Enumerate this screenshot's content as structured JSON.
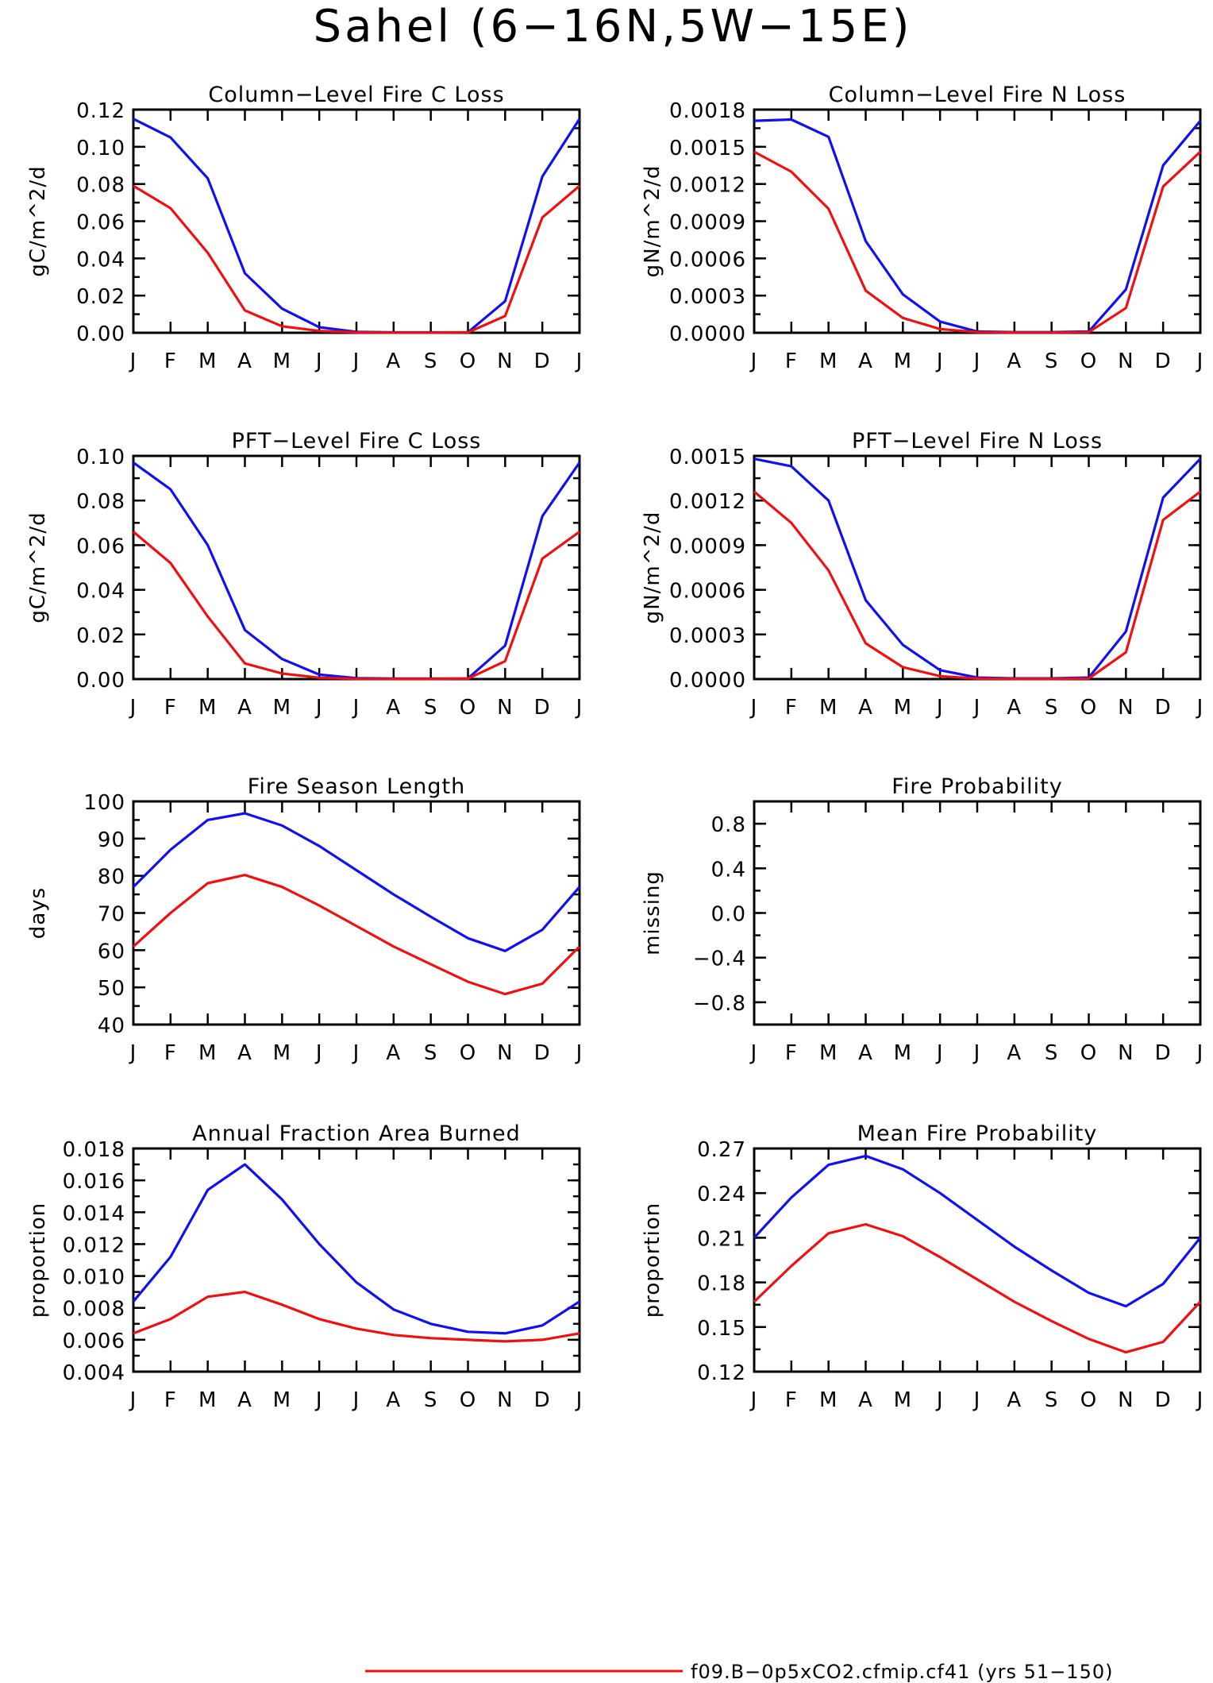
{
  "title": "Sahel (6−16N,5W−15E)",
  "colors": {
    "series_red": "#ee1111",
    "series_blue": "#1111ee"
  },
  "legend": {
    "entries": [
      {
        "label": "f09.B−0p5xCO2.cfmip.cf41 (yrs 51−150)",
        "color": "#ee1111"
      }
    ]
  },
  "chart_data": [
    {
      "type": "line",
      "title": "Column−Level Fire C Loss",
      "ylabel": "gC/m^2/d",
      "x": [
        "J",
        "F",
        "M",
        "A",
        "M",
        "J",
        "J",
        "A",
        "S",
        "O",
        "N",
        "D",
        "J"
      ],
      "ylim": [
        0,
        0.12
      ],
      "yticks": [
        "0.00",
        "0.02",
        "0.04",
        "0.06",
        "0.08",
        "0.10",
        "0.12"
      ],
      "series": [
        {
          "color": "#1111ee",
          "values": [
            0.115,
            0.105,
            0.083,
            0.032,
            0.013,
            0.003,
            0.0005,
            0.0002,
            0.0002,
            0.0003,
            0.017,
            0.084,
            0.115
          ]
        },
        {
          "color": "#ee1111",
          "values": [
            0.079,
            0.067,
            0.043,
            0.012,
            0.0035,
            0.001,
            0.0002,
            0.0001,
            0.0001,
            0.0002,
            0.009,
            0.062,
            0.079
          ]
        }
      ]
    },
    {
      "type": "line",
      "title": "Column−Level Fire N Loss",
      "ylabel": "gN/m^2/d",
      "x": [
        "J",
        "F",
        "M",
        "A",
        "M",
        "J",
        "J",
        "A",
        "S",
        "O",
        "N",
        "D",
        "J"
      ],
      "ylim": [
        0,
        0.0018
      ],
      "yticks": [
        "0.0000",
        "0.0003",
        "0.0006",
        "0.0009",
        "0.0012",
        "0.0015",
        "0.0018"
      ],
      "series": [
        {
          "color": "#1111ee",
          "values": [
            0.00171,
            0.00172,
            0.00158,
            0.00074,
            0.00031,
            9e-05,
            1e-05,
            5e-06,
            5e-06,
            1e-05,
            0.00035,
            0.00135,
            0.00171
          ]
        },
        {
          "color": "#ee1111",
          "values": [
            0.00146,
            0.0013,
            0.001,
            0.00034,
            0.00012,
            3e-05,
            5e-06,
            2e-06,
            2e-06,
            5e-06,
            0.0002,
            0.00118,
            0.00146
          ]
        }
      ]
    },
    {
      "type": "line",
      "title": "PFT−Level Fire C Loss",
      "ylabel": "gC/m^2/d",
      "x": [
        "J",
        "F",
        "M",
        "A",
        "M",
        "J",
        "J",
        "A",
        "S",
        "O",
        "N",
        "D",
        "J"
      ],
      "ylim": [
        0,
        0.1
      ],
      "yticks": [
        "0.00",
        "0.02",
        "0.04",
        "0.06",
        "0.08",
        "0.10"
      ],
      "series": [
        {
          "color": "#1111ee",
          "values": [
            0.097,
            0.085,
            0.06,
            0.022,
            0.009,
            0.002,
            0.0004,
            0.0002,
            0.0002,
            0.0003,
            0.015,
            0.073,
            0.097
          ]
        },
        {
          "color": "#ee1111",
          "values": [
            0.066,
            0.052,
            0.028,
            0.007,
            0.0025,
            0.0006,
            0.0001,
            0.0001,
            0.0001,
            0.0002,
            0.008,
            0.054,
            0.066
          ]
        }
      ]
    },
    {
      "type": "line",
      "title": "PFT−Level Fire N Loss",
      "ylabel": "gN/m^2/d",
      "x": [
        "J",
        "F",
        "M",
        "A",
        "M",
        "J",
        "J",
        "A",
        "S",
        "O",
        "N",
        "D",
        "J"
      ],
      "ylim": [
        0,
        0.0015
      ],
      "yticks": [
        "0.0000",
        "0.0003",
        "0.0006",
        "0.0009",
        "0.0012",
        "0.0015"
      ],
      "series": [
        {
          "color": "#1111ee",
          "values": [
            0.00148,
            0.00143,
            0.0012,
            0.00053,
            0.00023,
            6e-05,
            1e-05,
            5e-06,
            5e-06,
            1e-05,
            0.00032,
            0.00122,
            0.00148
          ]
        },
        {
          "color": "#ee1111",
          "values": [
            0.00126,
            0.00105,
            0.00073,
            0.00024,
            8e-05,
            2e-05,
            3e-06,
            2e-06,
            2e-06,
            4e-06,
            0.00018,
            0.00107,
            0.00126
          ]
        }
      ]
    },
    {
      "type": "line",
      "title": "Fire Season Length",
      "ylabel": "days",
      "x": [
        "J",
        "F",
        "M",
        "A",
        "M",
        "J",
        "J",
        "A",
        "S",
        "O",
        "N",
        "D",
        "J"
      ],
      "ylim": [
        40,
        100
      ],
      "yticks": [
        "40",
        "50",
        "60",
        "70",
        "80",
        "90",
        "100"
      ],
      "series": [
        {
          "color": "#1111ee",
          "values": [
            77,
            87,
            95,
            96.8,
            93.5,
            88,
            81.5,
            75,
            69,
            63.2,
            59.8,
            65.5,
            77
          ]
        },
        {
          "color": "#ee1111",
          "values": [
            61,
            70,
            78,
            80.2,
            77,
            72,
            66.5,
            61,
            56.2,
            51.5,
            48.2,
            51,
            61
          ]
        }
      ]
    },
    {
      "type": "line",
      "title": "Fire Probability",
      "ylabel": "missing",
      "x": [
        "J",
        "F",
        "M",
        "A",
        "M",
        "J",
        "J",
        "A",
        "S",
        "O",
        "N",
        "D",
        "J"
      ],
      "ylim": [
        -1.0,
        1.0
      ],
      "yticks": [
        "−0.8",
        "−0.4",
        "0.0",
        "0.4",
        "0.8"
      ],
      "yticks_values": [
        -0.8,
        -0.4,
        0.0,
        0.4,
        0.8
      ],
      "series": []
    },
    {
      "type": "line",
      "title": "Annual Fraction Area Burned",
      "ylabel": "proportion",
      "x": [
        "J",
        "F",
        "M",
        "A",
        "M",
        "J",
        "J",
        "A",
        "S",
        "O",
        "N",
        "D",
        "J"
      ],
      "ylim": [
        0.004,
        0.018
      ],
      "yticks": [
        "0.004",
        "0.006",
        "0.008",
        "0.010",
        "0.012",
        "0.014",
        "0.016",
        "0.018"
      ],
      "series": [
        {
          "color": "#1111ee",
          "values": [
            0.0084,
            0.0112,
            0.0154,
            0.017,
            0.0148,
            0.012,
            0.0096,
            0.0079,
            0.007,
            0.0065,
            0.0064,
            0.0069,
            0.0084
          ]
        },
        {
          "color": "#ee1111",
          "values": [
            0.0064,
            0.0073,
            0.0087,
            0.009,
            0.0082,
            0.0073,
            0.0067,
            0.0063,
            0.0061,
            0.006,
            0.0059,
            0.006,
            0.0064
          ]
        }
      ]
    },
    {
      "type": "line",
      "title": "Mean Fire Probability",
      "ylabel": "proportion",
      "x": [
        "J",
        "F",
        "M",
        "A",
        "M",
        "J",
        "J",
        "A",
        "S",
        "O",
        "N",
        "D",
        "J"
      ],
      "ylim": [
        0.12,
        0.27
      ],
      "yticks": [
        "0.12",
        "0.15",
        "0.18",
        "0.21",
        "0.24",
        "0.27"
      ],
      "series": [
        {
          "color": "#1111ee",
          "values": [
            0.21,
            0.237,
            0.259,
            0.265,
            0.256,
            0.24,
            0.222,
            0.204,
            0.188,
            0.173,
            0.164,
            0.179,
            0.21
          ]
        },
        {
          "color": "#ee1111",
          "values": [
            0.167,
            0.191,
            0.213,
            0.219,
            0.211,
            0.197,
            0.182,
            0.167,
            0.154,
            0.142,
            0.133,
            0.14,
            0.167
          ]
        }
      ]
    }
  ]
}
